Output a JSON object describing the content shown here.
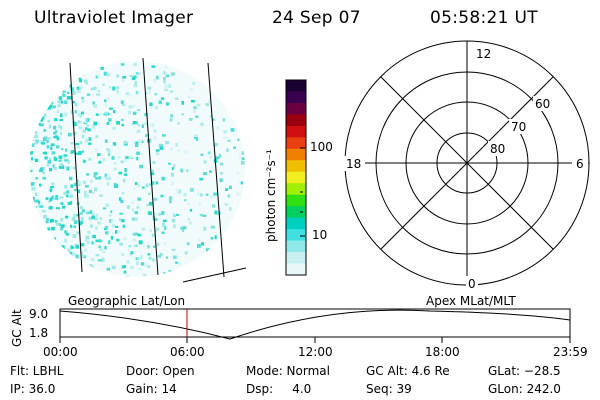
{
  "header": {
    "instrument": "Ultraviolet Imager",
    "date": "24 Sep 07",
    "time": "05:58:21 UT"
  },
  "colorbar": {
    "unit_label": "photon cm⁻²s⁻¹",
    "ticks": [
      "100",
      "10"
    ],
    "colors": [
      "#1a0033",
      "#3a0050",
      "#6a0040",
      "#9a0010",
      "#d01010",
      "#e84010",
      "#f08000",
      "#f0c000",
      "#f0f020",
      "#a0f000",
      "#30e010",
      "#00d060",
      "#00d0c0",
      "#40e0e0",
      "#90e8e8",
      "#c8f0f0",
      "#e8f8f8"
    ]
  },
  "polar": {
    "mlt_labels": [
      "12",
      "18",
      "6",
      "0"
    ],
    "mlat_labels": [
      "60",
      "70",
      "80"
    ]
  },
  "timeline": {
    "left_title": "Geographic Lat/Lon",
    "right_title": "Apex  MLat/MLT",
    "yaxis_label": "GC Alt",
    "y_top": "9.0",
    "y_bottom": "1.8",
    "x_ticks": [
      "00:00",
      "06:00",
      "12:00",
      "18:00",
      "23:59"
    ],
    "marker_time": "05:58"
  },
  "status": {
    "flt": "Flt: LBHL",
    "ip": "IP: 36.0",
    "door": "Door: Open",
    "gain": "Gain: 14",
    "mode": "Mode: Normal",
    "dsp": "Dsp:     4.0",
    "gcalt": "GC Alt: 4.6 Re",
    "seq": "Seq: 39",
    "glat": "GLat: −28.5",
    "glon": "GLon: 242.0"
  }
}
